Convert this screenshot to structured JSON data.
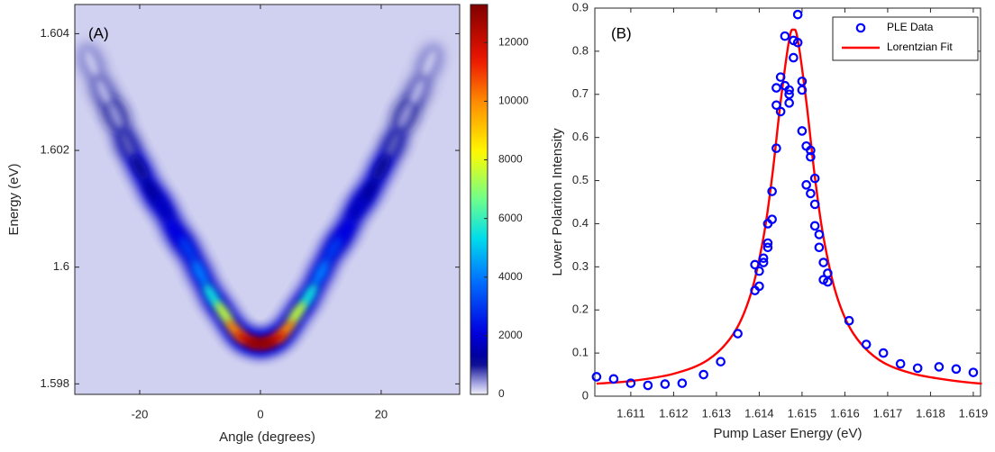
{
  "chart_data": [
    {
      "type": "heatmap",
      "annotation": "(A)",
      "x_label": "Angle (degrees)",
      "y_label": "Energy (eV)",
      "x": [
        -28,
        -26,
        -24,
        -22,
        -20,
        -18,
        -16,
        -14,
        -12,
        -10,
        -8,
        -6,
        -4,
        -2,
        0,
        2,
        4,
        6,
        8,
        10,
        12,
        14,
        16,
        18,
        20,
        22,
        24,
        26,
        28
      ],
      "y": [
        1.6035,
        1.603,
        1.6026,
        1.6021,
        1.6017,
        1.6013,
        1.601,
        1.6006,
        1.6003,
        1.5999,
        1.5995,
        1.5992,
        1.5989,
        1.59875,
        1.5987,
        1.59875,
        1.5989,
        1.5992,
        1.5995,
        1.5999,
        1.6003,
        1.6006,
        1.601,
        1.6013,
        1.6017,
        1.6021,
        1.6026,
        1.603,
        1.6035
      ],
      "z": [
        200,
        300,
        450,
        700,
        1000,
        1300,
        1700,
        2200,
        3000,
        4000,
        5500,
        7500,
        10000,
        12000,
        13000,
        12000,
        10000,
        7500,
        5500,
        4000,
        3000,
        2200,
        1700,
        1300,
        1000,
        700,
        450,
        300,
        200
      ],
      "xlim": [
        -30.75,
        33
      ],
      "ylim": [
        1.59782,
        1.6045
      ],
      "xticks": [
        -20,
        0,
        20
      ],
      "yticks": [
        1.598,
        1.6,
        1.602,
        1.604
      ],
      "zlim": [
        0,
        13300
      ],
      "zticks": [
        0,
        2000,
        4000,
        6000,
        8000,
        10000,
        12000
      ]
    },
    {
      "type": "scatter_line",
      "annotation": "(B)",
      "x_label": "Pump Laser Energy (eV)",
      "y_label": "Lower Polariton Intensity",
      "legend": "upper right",
      "xlim": [
        1.61016,
        1.61917
      ],
      "ylim": [
        0,
        0.9
      ],
      "xticks": [
        1.611,
        1.612,
        1.613,
        1.614,
        1.615,
        1.616,
        1.617,
        1.618,
        1.619
      ],
      "yticks": [
        0,
        0.1,
        0.2,
        0.3,
        0.4,
        0.5,
        0.6,
        0.7,
        0.8,
        0.9
      ],
      "series": [
        {
          "name": "PLE Data",
          "type": "scatter",
          "color": "#0000ff",
          "x": [
            1.6102,
            1.6106,
            1.611,
            1.6114,
            1.6118,
            1.6122,
            1.6127,
            1.6131,
            1.6135,
            1.6139,
            1.6139,
            1.614,
            1.614,
            1.6141,
            1.6141,
            1.6142,
            1.6142,
            1.6142,
            1.6143,
            1.6143,
            1.6144,
            1.6144,
            1.6144,
            1.6145,
            1.6145,
            1.6146,
            1.6146,
            1.6147,
            1.6147,
            1.6147,
            1.6148,
            1.6148,
            1.6149,
            1.6149,
            1.615,
            1.615,
            1.615,
            1.6151,
            1.6151,
            1.6152,
            1.6152,
            1.6152,
            1.6153,
            1.6153,
            1.6153,
            1.6154,
            1.6154,
            1.6155,
            1.6155,
            1.6156,
            1.6156,
            1.6161,
            1.6165,
            1.6169,
            1.6173,
            1.6177,
            1.6182,
            1.6186,
            1.619
          ],
          "values": [
            0.045,
            0.04,
            0.03,
            0.025,
            0.028,
            0.03,
            0.05,
            0.08,
            0.145,
            0.245,
            0.305,
            0.255,
            0.29,
            0.31,
            0.32,
            0.355,
            0.4,
            0.345,
            0.41,
            0.475,
            0.575,
            0.675,
            0.715,
            0.66,
            0.74,
            0.835,
            0.72,
            0.7,
            0.68,
            0.71,
            0.785,
            0.825,
            0.885,
            0.82,
            0.73,
            0.71,
            0.615,
            0.58,
            0.49,
            0.47,
            0.57,
            0.555,
            0.505,
            0.445,
            0.395,
            0.375,
            0.345,
            0.31,
            0.27,
            0.285,
            0.265,
            0.175,
            0.12,
            0.1,
            0.075,
            0.065,
            0.068,
            0.063,
            0.055
          ]
        },
        {
          "name": "Lorentzian Fit",
          "type": "line",
          "color": "#ff0000",
          "x": [
            1.6102,
            1.611,
            1.612,
            1.6128,
            1.6134,
            1.6138,
            1.6141,
            1.6143,
            1.6145,
            1.6147,
            1.6148,
            1.6149,
            1.6151,
            1.6153,
            1.6155,
            1.6158,
            1.6162,
            1.6168,
            1.6176,
            1.6186,
            1.6192
          ],
          "values": [
            0.029,
            0.035,
            0.052,
            0.084,
            0.145,
            0.236,
            0.369,
            0.508,
            0.683,
            0.827,
            0.85,
            0.827,
            0.683,
            0.508,
            0.369,
            0.236,
            0.145,
            0.084,
            0.052,
            0.035,
            0.029
          ]
        }
      ]
    }
  ]
}
